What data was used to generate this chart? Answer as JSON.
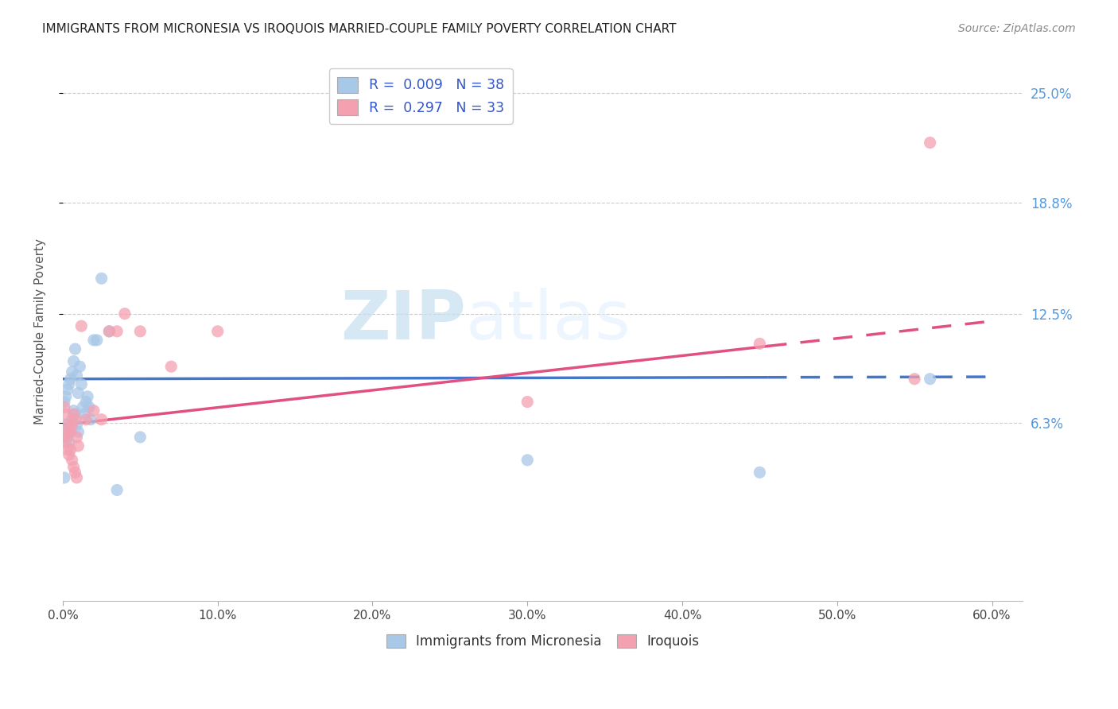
{
  "title": "IMMIGRANTS FROM MICRONESIA VS IROQUOIS MARRIED-COUPLE FAMILY POVERTY CORRELATION CHART",
  "source": "Source: ZipAtlas.com",
  "ylabel": "Married-Couple Family Poverty",
  "legend_labels": [
    "Immigrants from Micronesia",
    "Iroquois"
  ],
  "r_blue": 0.009,
  "r_pink": 0.297,
  "n_blue": 38,
  "n_pink": 33,
  "blue_color": "#a8c8e8",
  "pink_color": "#f4a0b0",
  "trend_blue_color": "#4477cc",
  "trend_pink_color": "#e05080",
  "watermark_zip": "ZIP",
  "watermark_atlas": "atlas",
  "xlim": [
    0.0,
    0.62
  ],
  "ylim": [
    -0.038,
    0.268
  ],
  "ytick_values": [
    0.063,
    0.125,
    0.188,
    0.25
  ],
  "ytick_labels": [
    "6.3%",
    "12.5%",
    "18.8%",
    "25.0%"
  ],
  "xtick_values": [
    0.0,
    0.1,
    0.2,
    0.3,
    0.4,
    0.5,
    0.6
  ],
  "xtick_labels": [
    "0.0%",
    "10.0%",
    "20.0%",
    "30.0%",
    "40.0%",
    "50.0%",
    "60.0%"
  ],
  "blue_trend_x0": 0.0,
  "blue_trend_x_solid_end": 0.455,
  "blue_trend_x_end": 0.6,
  "blue_trend_y0": 0.088,
  "blue_trend_slope": 0.002,
  "pink_trend_x0": 0.0,
  "pink_trend_x_solid_end": 0.455,
  "pink_trend_x_end": 0.6,
  "pink_trend_y0": 0.062,
  "pink_trend_slope": 0.098,
  "blue_x": [
    0.001,
    0.002,
    0.003,
    0.004,
    0.005,
    0.006,
    0.007,
    0.008,
    0.009,
    0.01,
    0.001,
    0.002,
    0.003,
    0.004,
    0.005,
    0.006,
    0.007,
    0.008,
    0.009,
    0.01,
    0.011,
    0.012,
    0.013,
    0.014,
    0.015,
    0.016,
    0.017,
    0.018,
    0.02,
    0.022,
    0.025,
    0.03,
    0.035,
    0.05,
    0.3,
    0.45,
    0.56,
    0.001
  ],
  "blue_y": [
    0.062,
    0.058,
    0.055,
    0.052,
    0.06,
    0.065,
    0.07,
    0.068,
    0.062,
    0.058,
    0.075,
    0.078,
    0.082,
    0.085,
    0.088,
    0.092,
    0.098,
    0.105,
    0.09,
    0.08,
    0.095,
    0.085,
    0.072,
    0.068,
    0.075,
    0.078,
    0.072,
    0.065,
    0.11,
    0.11,
    0.145,
    0.115,
    0.025,
    0.055,
    0.042,
    0.035,
    0.088,
    0.032
  ],
  "pink_x": [
    0.001,
    0.002,
    0.003,
    0.004,
    0.005,
    0.006,
    0.007,
    0.008,
    0.009,
    0.01,
    0.001,
    0.002,
    0.003,
    0.004,
    0.005,
    0.006,
    0.007,
    0.008,
    0.009,
    0.012,
    0.015,
    0.02,
    0.025,
    0.03,
    0.035,
    0.04,
    0.05,
    0.07,
    0.1,
    0.3,
    0.45,
    0.55,
    0.56
  ],
  "pink_y": [
    0.055,
    0.052,
    0.048,
    0.045,
    0.058,
    0.062,
    0.068,
    0.065,
    0.055,
    0.05,
    0.072,
    0.068,
    0.062,
    0.058,
    0.048,
    0.042,
    0.038,
    0.035,
    0.032,
    0.118,
    0.065,
    0.07,
    0.065,
    0.115,
    0.115,
    0.125,
    0.115,
    0.095,
    0.115,
    0.075,
    0.108,
    0.088,
    0.222
  ]
}
